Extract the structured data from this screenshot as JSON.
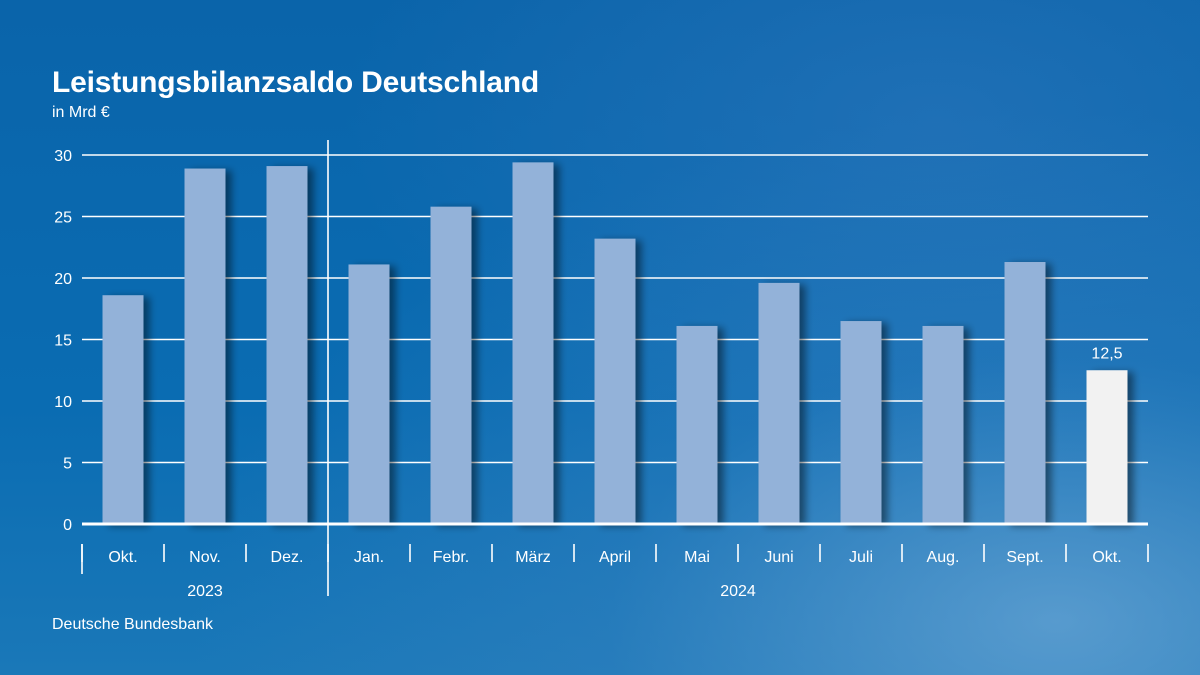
{
  "title": "Leistungsbilanzsaldo Deutschland",
  "subtitle": "in Mrd €",
  "source": "Deutsche Bundesbank",
  "colors": {
    "bar": "#93b2d9",
    "highlight_bar": "#f2f2f2",
    "grid": "#ffffff",
    "background": "#0a6ab0"
  },
  "chart_data": {
    "type": "bar",
    "categories": [
      "Okt.",
      "Nov.",
      "Dez.",
      "Jan.",
      "Febr.",
      "März",
      "April",
      "Mai",
      "Juni",
      "Juli",
      "Aug.",
      "Sept.",
      "Okt."
    ],
    "values": [
      18.6,
      28.9,
      29.1,
      21.1,
      25.8,
      29.4,
      23.2,
      16.1,
      19.6,
      16.5,
      16.1,
      21.3,
      12.5
    ],
    "year_groups": [
      {
        "label": "2023",
        "count": 3
      },
      {
        "label": "2024",
        "count": 10
      }
    ],
    "highlight_index": 12,
    "data_labels": [
      {
        "index": 12,
        "text": "12,5"
      }
    ],
    "y_ticks": [
      0,
      5,
      10,
      15,
      20,
      25,
      30
    ],
    "ylim": [
      0,
      30
    ],
    "grid": true,
    "legend": "none"
  }
}
